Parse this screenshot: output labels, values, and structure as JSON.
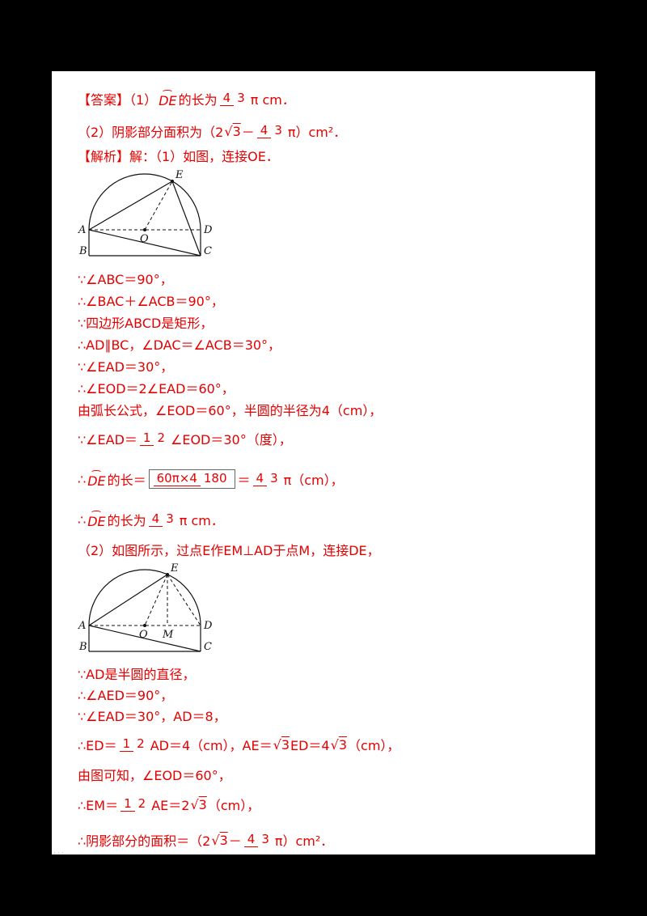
{
  "meta": {
    "footer": "···"
  },
  "figures": {
    "fig1": {
      "labels": {
        "E": "E",
        "A": "A",
        "D": "D",
        "O": "O",
        "B": "B",
        "C": "C"
      }
    },
    "fig2": {
      "labels": {
        "E": "E",
        "A": "A",
        "O": "O",
        "M": "M",
        "D": "D",
        "B": "B",
        "C": "C"
      }
    }
  },
  "lines": {
    "a1": {
      "segments": [
        {
          "t": "text",
          "v": "【答案】（1）"
        },
        {
          "t": "arc",
          "v": "DE"
        },
        {
          "t": "text",
          "v": "的长为"
        },
        {
          "t": "frac",
          "num": "4",
          "den": "3"
        },
        {
          "t": "text",
          "v": "π cm．"
        }
      ]
    },
    "a2": {
      "segments": [
        {
          "t": "text",
          "v": "（2）阴影部分面积为（2"
        },
        {
          "t": "sqrt",
          "v": "3"
        },
        {
          "t": "text",
          "v": "－"
        },
        {
          "t": "frac",
          "num": "4",
          "den": "3"
        },
        {
          "t": "text",
          "v": "π）cm²．"
        }
      ]
    },
    "h1": {
      "segments": [
        {
          "t": "text",
          "v": "【解析】解：（1）如图，连接OE．"
        }
      ]
    },
    "k1": {
      "segments": [
        {
          "t": "text",
          "v": "∵∠ABC＝90°，"
        }
      ]
    },
    "k2": {
      "segments": [
        {
          "t": "text",
          "v": "∴∠BAC＋∠ACB＝90°，"
        }
      ]
    },
    "k3": {
      "segments": [
        {
          "t": "text",
          "v": "∵四边形ABCD是矩形，"
        }
      ]
    },
    "k4": {
      "segments": [
        {
          "t": "text",
          "v": "∴AD∥BC，∠DAC＝∠ACB＝30°，"
        }
      ]
    },
    "k5": {
      "segments": [
        {
          "t": "text",
          "v": "∵∠EAD＝30°，"
        }
      ]
    },
    "k6": {
      "segments": [
        {
          "t": "text",
          "v": "∴∠EOD＝2∠EAD＝60°，"
        }
      ]
    },
    "k7": {
      "segments": [
        {
          "t": "text",
          "v": "由弧长公式，∠EOD＝60°，半圆的半径为4（cm），"
        }
      ]
    },
    "k8": {
      "segments": [
        {
          "t": "text",
          "v": "∵∠EAD＝"
        },
        {
          "t": "frac",
          "num": "1",
          "den": "2"
        },
        {
          "t": "text",
          "v": "∠EOD＝30°（度），"
        }
      ]
    },
    "k9": {
      "segments": [
        {
          "t": "text",
          "v": "∴"
        },
        {
          "t": "arc",
          "v": "DE"
        },
        {
          "t": "text",
          "v": "的长＝"
        },
        {
          "t": "frac",
          "num": "60π×4",
          "den": "180",
          "boxed": true
        },
        {
          "t": "text",
          "v": "＝"
        },
        {
          "t": "frac",
          "num": "4",
          "den": "3"
        },
        {
          "t": "text",
          "v": "π（cm），"
        }
      ]
    },
    "k10": {
      "segments": [
        {
          "t": "text",
          "v": "∴"
        },
        {
          "t": "arc",
          "v": "DE"
        },
        {
          "t": "text",
          "v": "的长为"
        },
        {
          "t": "frac",
          "num": "4",
          "den": "3"
        },
        {
          "t": "text",
          "v": "π cm．"
        }
      ]
    },
    "k11": {
      "segments": [
        {
          "t": "text",
          "v": "（2）如图所示，过点E作EM⊥AD于点M，连接DE，"
        }
      ]
    },
    "k12": {
      "segments": [
        {
          "t": "text",
          "v": "∵AD是半圆的直径，"
        }
      ]
    },
    "k13": {
      "segments": [
        {
          "t": "text",
          "v": "∴∠AED＝90°，"
        }
      ]
    },
    "k14": {
      "segments": [
        {
          "t": "text",
          "v": "∵∠EAD＝30°，AD＝8，"
        }
      ]
    },
    "k15": {
      "segments": [
        {
          "t": "text",
          "v": "∴ED＝"
        },
        {
          "t": "frac",
          "num": "1",
          "den": "2"
        },
        {
          "t": "text",
          "v": "AD＝4（cm），AE＝"
        },
        {
          "t": "sqrt",
          "v": "3"
        },
        {
          "t": "text",
          "v": "ED＝4"
        },
        {
          "t": "sqrt",
          "v": "3"
        },
        {
          "t": "text",
          "v": "（cm），"
        }
      ]
    },
    "k16": {
      "segments": [
        {
          "t": "text",
          "v": "由图可知，∠EOD＝60°，"
        }
      ]
    },
    "k17": {
      "segments": [
        {
          "t": "text",
          "v": "∴EM＝"
        },
        {
          "t": "frac",
          "num": "1",
          "den": "2"
        },
        {
          "t": "text",
          "v": "AE＝2"
        },
        {
          "t": "sqrt",
          "v": "3"
        },
        {
          "t": "text",
          "v": "（cm），"
        }
      ]
    },
    "k18": {
      "segments": [
        {
          "t": "text",
          "v": "∴阴影部分的面积＝（2"
        },
        {
          "t": "sqrt",
          "v": "3"
        },
        {
          "t": "text",
          "v": "－"
        },
        {
          "t": "frac",
          "num": "4",
          "den": "3"
        },
        {
          "t": "text",
          "v": "π）cm²．"
        }
      ]
    }
  }
}
